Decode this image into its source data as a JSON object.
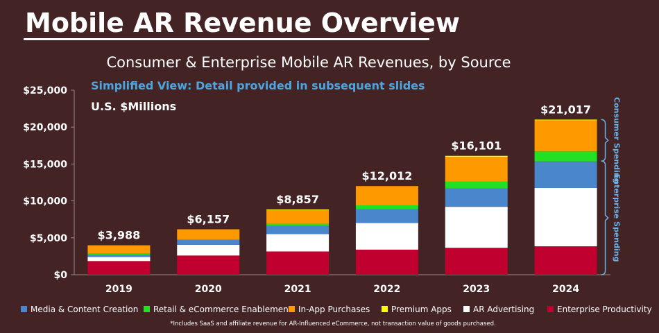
{
  "page": {
    "title": "Mobile AR Revenue Overview",
    "footnote": "*Includes SaaS and affiliate revenue for AR-Influenced eCommerce, not transaction value of goods purchased."
  },
  "colors": {
    "background": "#432324",
    "text": "#ffffff",
    "accent_blue": "#4da6e0",
    "bracket": "#6ab2e8"
  },
  "chart_data": {
    "type": "bar",
    "stacked": true,
    "title": "Consumer & Enterprise Mobile AR Revenues, by Source",
    "subtitle": "Simplified View: Detail provided in subsequent slides",
    "unit_label": "U.S. $Millions",
    "xlabel": "",
    "ylabel": "",
    "ylim": [
      0,
      25000
    ],
    "yticks": [
      0,
      5000,
      10000,
      15000,
      20000,
      25000
    ],
    "ytick_labels": [
      "$0",
      "$5,000",
      "$10,000",
      "$15,000",
      "$20,000",
      "$25,000"
    ],
    "categories": [
      "2019",
      "2020",
      "2021",
      "2022",
      "2023",
      "2024"
    ],
    "totals": [
      3988,
      6157,
      8857,
      12012,
      16101,
      21017
    ],
    "total_labels": [
      "$3,988",
      "$6,157",
      "$8,857",
      "$12,012",
      "$16,101",
      "$21,017"
    ],
    "series": [
      {
        "name": "Enterprise Productivity",
        "color": "#c0002f",
        "values": [
          1850,
          2600,
          3150,
          3400,
          3650,
          3850
        ]
      },
      {
        "name": "AR Advertising",
        "color": "#ffffff",
        "values": [
          550,
          1450,
          2350,
          3600,
          5550,
          7900
        ]
      },
      {
        "name": "Media & Content Creation",
        "color": "#4a86cc",
        "values": [
          300,
          650,
          1100,
          1850,
          2500,
          3600
        ]
      },
      {
        "name": "Retail & eCommerce Enablement",
        "color": "#22e022",
        "values": [
          150,
          100,
          300,
          550,
          900,
          1350
        ]
      },
      {
        "name": "In-App Purchases",
        "color": "#ff9900",
        "values": [
          1138,
          1357,
          1857,
          2612,
          3351,
          4217
        ]
      },
      {
        "name": "Premium Apps",
        "color": "#ffff00",
        "values": [
          0,
          0,
          100,
          0,
          150,
          100
        ]
      }
    ],
    "legend_order": [
      "Media & Content Creation",
      "Retail & eCommerce Enablement",
      "In-App Purchases",
      "Premium Apps",
      "AR Advertising",
      "Enterprise Productivity"
    ],
    "legend_position": "bottom",
    "annotations": [
      {
        "text": "Consumer Spending",
        "applies_to_last_category_range": [
          15400,
          21017
        ]
      },
      {
        "text": "Enterprise Spending",
        "applies_to_last_category_range": [
          0,
          15400
        ]
      }
    ],
    "grid": false
  }
}
